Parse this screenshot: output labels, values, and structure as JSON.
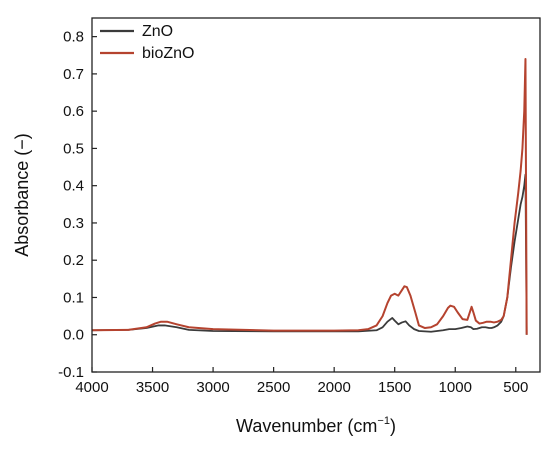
{
  "chart_data": {
    "type": "line",
    "title": "",
    "xlabel": "Wavenumber (cm",
    "xlabel_sup": "−1",
    "xlabel_suffix": ")",
    "ylabel": "Absorbance (−)",
    "xlim": [
      4000,
      300
    ],
    "ylim": [
      -0.1,
      0.85
    ],
    "x_reversed": true,
    "grid": false,
    "legend_position": "top-left",
    "x_ticks": [
      4000,
      3500,
      3000,
      2500,
      2000,
      1500,
      1000,
      500
    ],
    "x_tick_labels": [
      "4000",
      "3500",
      "3000",
      "2500",
      "2000",
      "1500",
      "1000",
      "500"
    ],
    "y_ticks": [
      -0.1,
      0.0,
      0.1,
      0.2,
      0.3,
      0.4,
      0.5,
      0.6,
      0.7,
      0.8
    ],
    "y_tick_labels": [
      "-0.1",
      "0.0",
      "0.1",
      "0.2",
      "0.3",
      "0.4",
      "0.5",
      "0.6",
      "0.7",
      "0.8"
    ],
    "series": [
      {
        "name": "ZnO",
        "color": "#3b3b3b",
        "x": [
          4000,
          3700,
          3550,
          3450,
          3400,
          3300,
          3200,
          3000,
          2500,
          2000,
          1800,
          1650,
          1600,
          1560,
          1520,
          1500,
          1470,
          1440,
          1410,
          1380,
          1340,
          1300,
          1200,
          1100,
          1050,
          1000,
          950,
          900,
          870,
          850,
          820,
          780,
          750,
          720,
          700,
          680,
          650,
          620,
          600,
          570,
          540,
          510,
          480,
          460,
          445,
          430,
          420,
          410
        ],
        "y": [
          0.012,
          0.013,
          0.018,
          0.025,
          0.025,
          0.02,
          0.013,
          0.01,
          0.009,
          0.009,
          0.009,
          0.012,
          0.02,
          0.035,
          0.045,
          0.038,
          0.028,
          0.033,
          0.036,
          0.025,
          0.015,
          0.01,
          0.008,
          0.012,
          0.015,
          0.015,
          0.018,
          0.022,
          0.02,
          0.015,
          0.016,
          0.02,
          0.02,
          0.018,
          0.018,
          0.02,
          0.025,
          0.035,
          0.05,
          0.1,
          0.18,
          0.25,
          0.31,
          0.35,
          0.37,
          0.4,
          0.43,
          0.0
        ]
      },
      {
        "name": "bioZnO",
        "color": "#b5432f",
        "x": [
          4000,
          3700,
          3550,
          3480,
          3430,
          3380,
          3300,
          3200,
          3000,
          2500,
          2000,
          1800,
          1720,
          1650,
          1600,
          1560,
          1530,
          1500,
          1470,
          1440,
          1420,
          1400,
          1370,
          1330,
          1300,
          1250,
          1200,
          1150,
          1100,
          1060,
          1040,
          1010,
          980,
          940,
          900,
          880,
          865,
          850,
          830,
          800,
          770,
          740,
          710,
          680,
          650,
          620,
          600,
          570,
          540,
          510,
          480,
          460,
          445,
          430,
          420,
          410
        ],
        "y": [
          0.012,
          0.013,
          0.02,
          0.03,
          0.035,
          0.035,
          0.028,
          0.02,
          0.015,
          0.011,
          0.011,
          0.012,
          0.015,
          0.025,
          0.05,
          0.085,
          0.105,
          0.11,
          0.105,
          0.12,
          0.13,
          0.128,
          0.105,
          0.06,
          0.025,
          0.018,
          0.02,
          0.028,
          0.05,
          0.072,
          0.078,
          0.075,
          0.06,
          0.042,
          0.04,
          0.06,
          0.075,
          0.06,
          0.038,
          0.03,
          0.032,
          0.035,
          0.035,
          0.033,
          0.035,
          0.04,
          0.05,
          0.1,
          0.2,
          0.3,
          0.38,
          0.44,
          0.5,
          0.6,
          0.74,
          0.0
        ]
      }
    ]
  }
}
